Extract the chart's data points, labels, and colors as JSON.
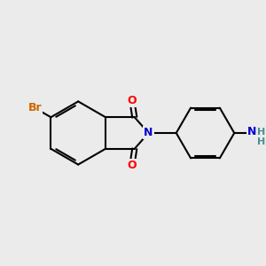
{
  "bg_color": "#ebebeb",
  "bond_color": "#000000",
  "bond_width": 1.5,
  "atom_colors": {
    "Br": "#cc6600",
    "O": "#ff0000",
    "N": "#0000cc",
    "H": "#4a9090",
    "C": "#000000"
  },
  "font_size_atom": 9,
  "fig_width": 3.0,
  "fig_height": 3.0,
  "dpi": 100
}
